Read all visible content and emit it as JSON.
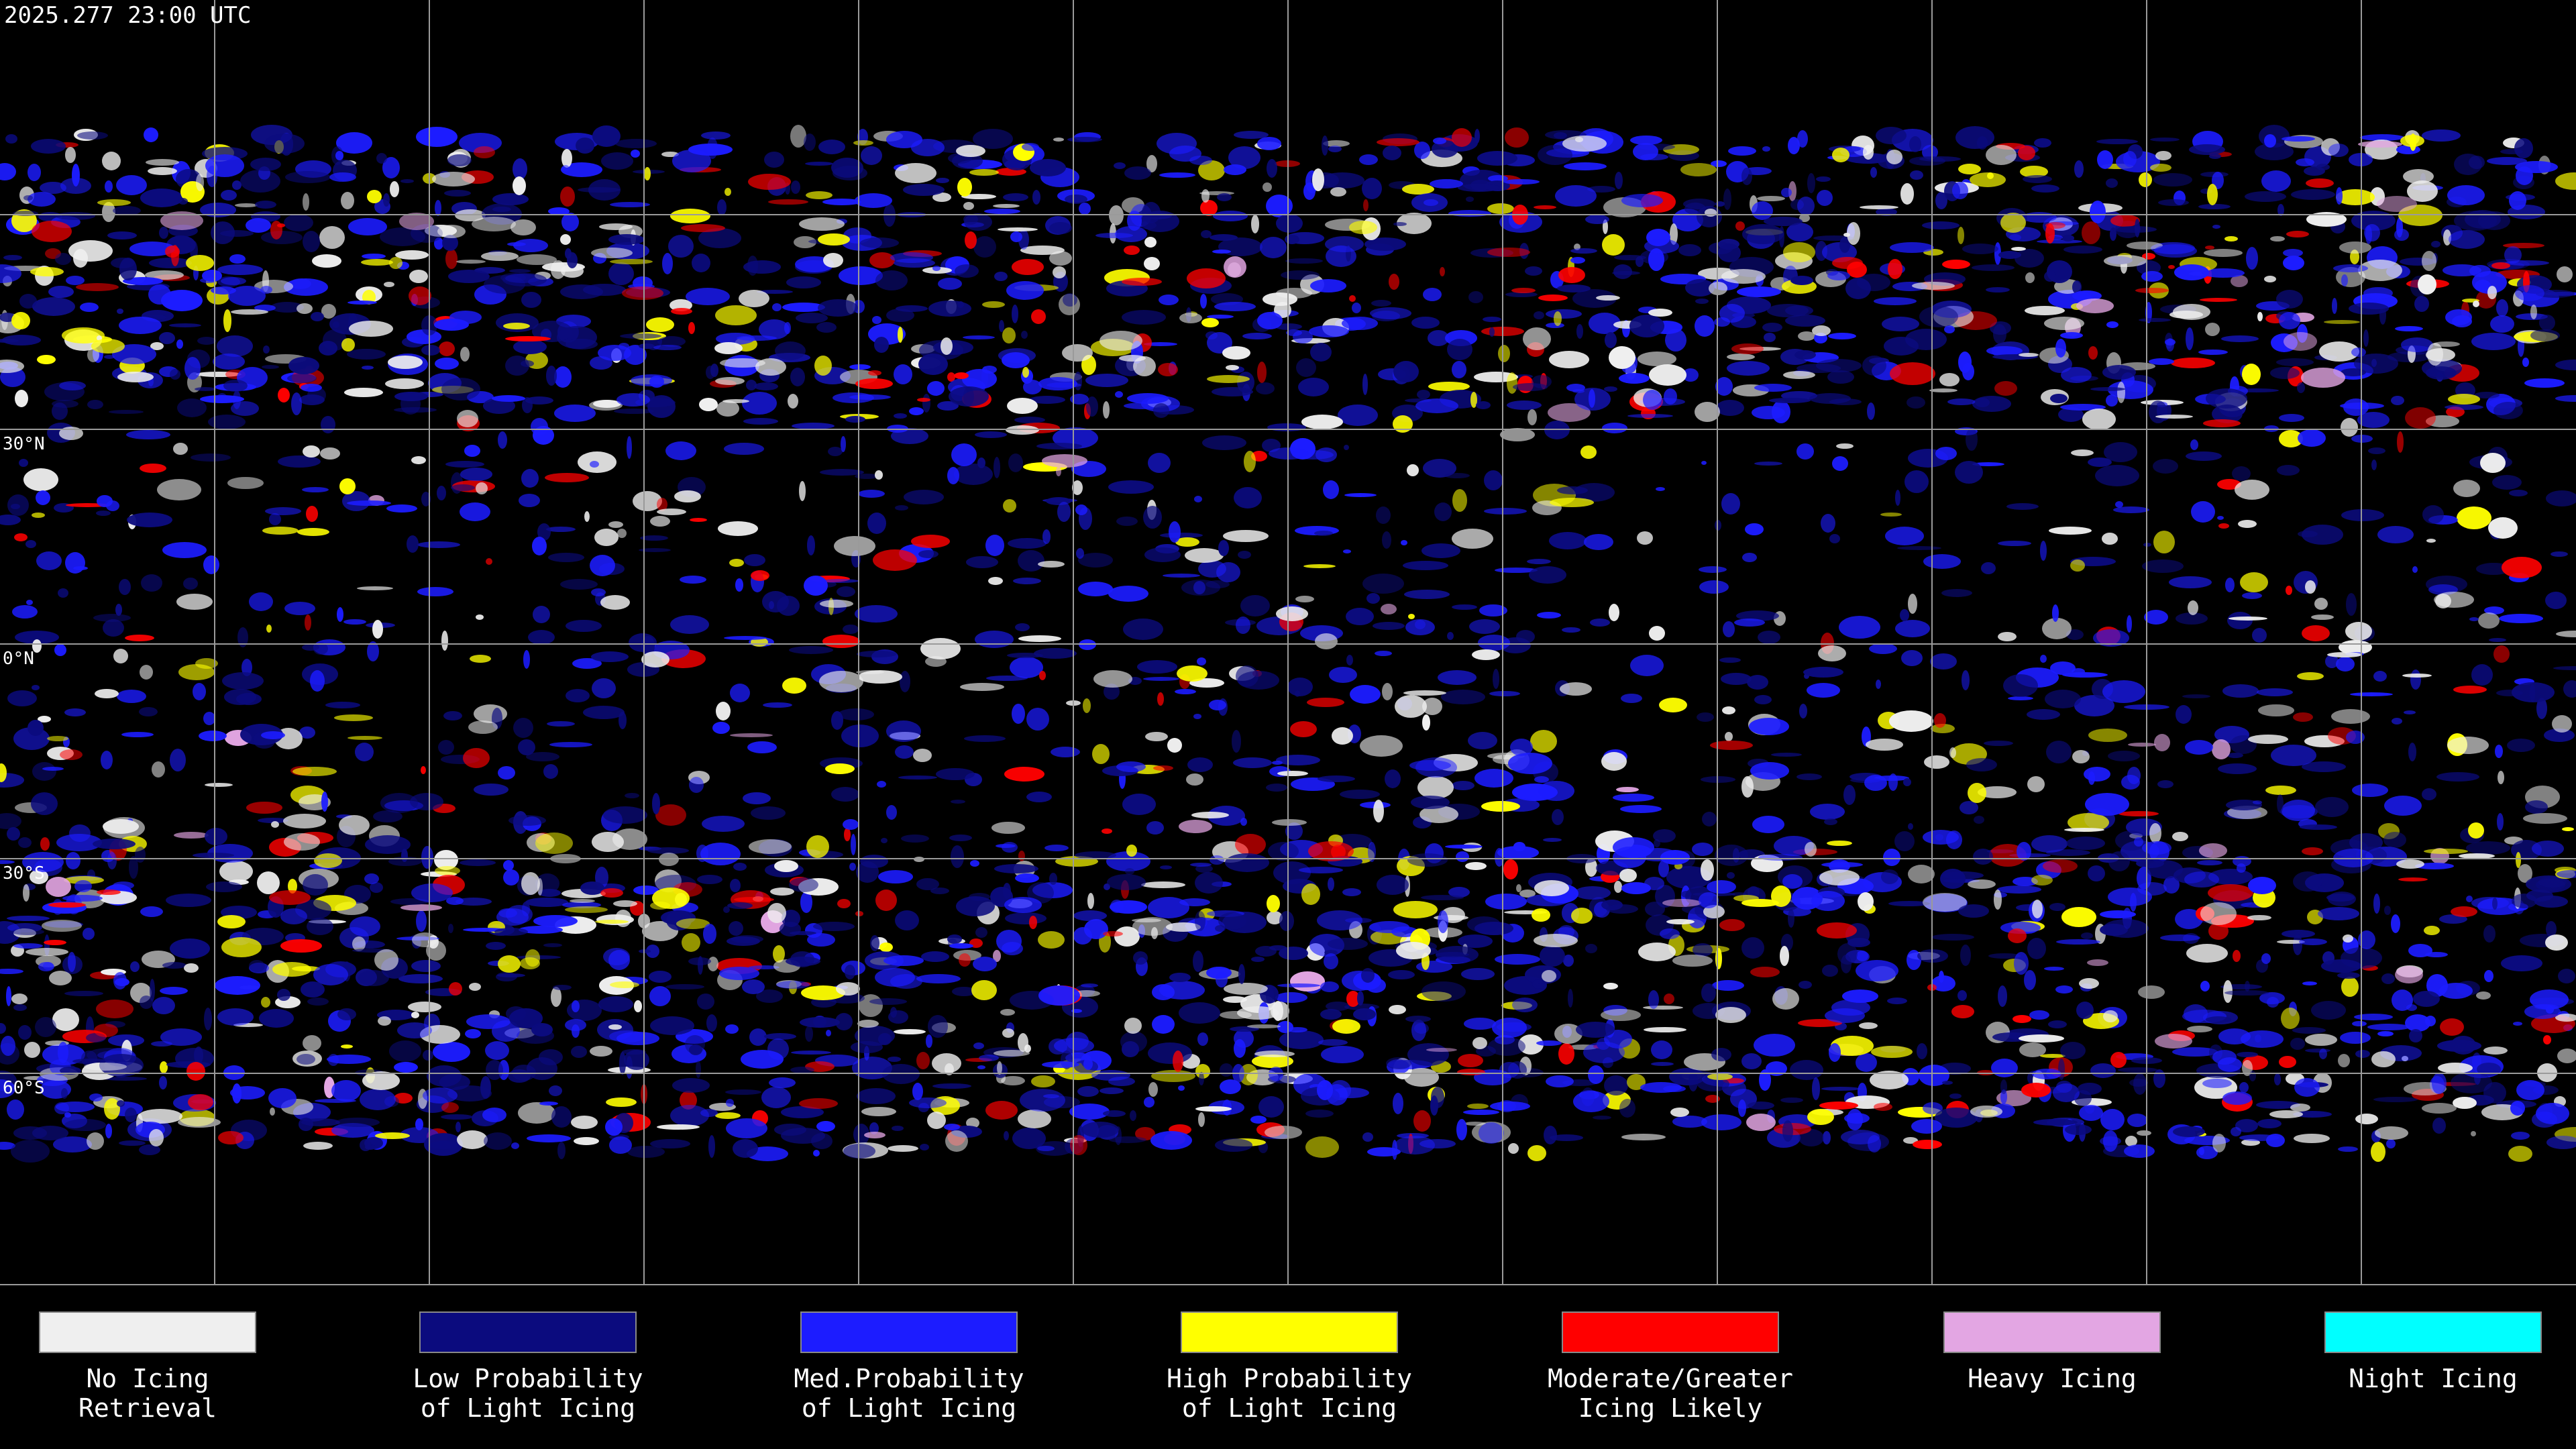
{
  "timestamp": "2025.277 23:00 UTC",
  "latitude_labels": [
    "30°N",
    "0°N",
    "30°S",
    "60°S"
  ],
  "legend": [
    {
      "label": [
        "No Icing",
        "Retrieval"
      ],
      "color": "#efefef"
    },
    {
      "label": [
        "Low Probability",
        "of Light Icing"
      ],
      "color": "#0b0b7e"
    },
    {
      "label": [
        "Med.Probability",
        "of Light Icing"
      ],
      "color": "#1c1cff"
    },
    {
      "label": [
        "High Probability",
        "of Light Icing"
      ],
      "color": "#ffff00"
    },
    {
      "label": [
        "Moderate/Greater",
        "Icing Likely"
      ],
      "color": "#ff0000"
    },
    {
      "label": [
        "Heavy Icing"
      ],
      "color": "#e3a6e3"
    },
    {
      "label": [
        "Night Icing"
      ],
      "color": "#00ffff"
    }
  ]
}
